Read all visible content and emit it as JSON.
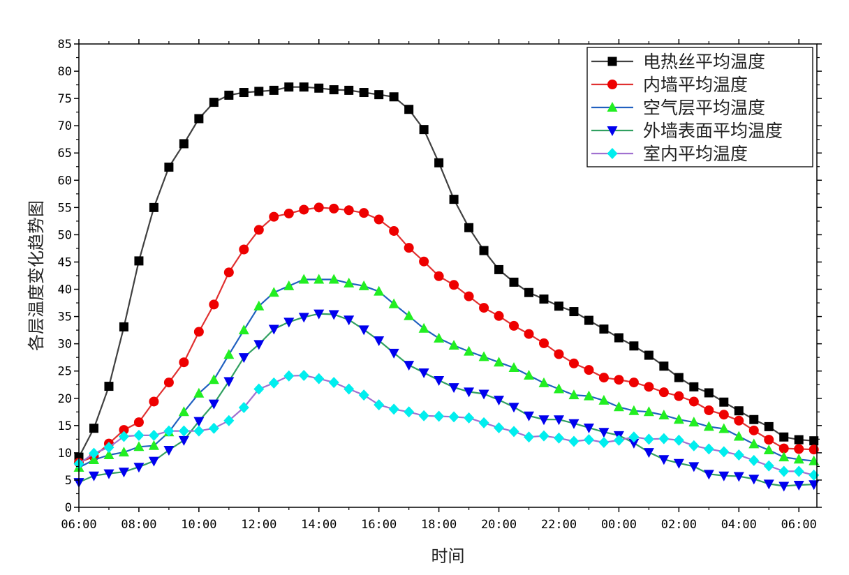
{
  "chart_data": {
    "type": "line",
    "xlabel": "时间",
    "ylabel": "各层温度变化趋势图",
    "xlim": [
      0,
      24.6
    ],
    "ylim": [
      0,
      85
    ],
    "ytick_values": [
      0,
      5,
      10,
      15,
      20,
      25,
      30,
      35,
      40,
      45,
      50,
      55,
      60,
      65,
      70,
      75,
      80,
      85
    ],
    "xtick_values": [
      0,
      2,
      4,
      6,
      8,
      10,
      12,
      14,
      16,
      18,
      20,
      22,
      24
    ],
    "xtick_labels": [
      "06:00",
      "08:00",
      "10:00",
      "12:00",
      "14:00",
      "16:00",
      "18:00",
      "20:00",
      "22:00",
      "00:00",
      "02:00",
      "04:00",
      "06:00"
    ],
    "x": [
      0,
      0.5,
      1,
      1.5,
      2,
      2.5,
      3,
      3.5,
      4,
      4.5,
      5,
      5.5,
      6,
      6.5,
      7,
      7.5,
      8,
      8.5,
      9,
      9.5,
      10,
      10.5,
      11,
      11.5,
      12,
      12.5,
      13,
      13.5,
      14,
      14.5,
      15,
      15.5,
      16,
      16.5,
      17,
      17.5,
      18,
      18.5,
      19,
      19.5,
      20,
      20.5,
      21,
      21.5,
      22,
      22.5,
      23,
      23.5,
      24,
      24.5
    ],
    "legend_position": "top-right",
    "series": [
      {
        "name": "电热丝平均温度",
        "color": "#404040",
        "marker": "square",
        "marker_color": "#000000",
        "values": [
          9.2,
          14.5,
          22.2,
          33.1,
          45.2,
          55.0,
          62.4,
          66.7,
          71.3,
          74.3,
          75.6,
          76.1,
          76.3,
          76.5,
          77.1,
          77.1,
          76.9,
          76.6,
          76.5,
          76.1,
          75.7,
          75.3,
          73.0,
          69.3,
          63.2,
          56.5,
          51.3,
          47.1,
          43.6,
          41.3,
          39.4,
          38.2,
          36.9,
          35.9,
          34.3,
          32.7,
          31.1,
          29.6,
          27.9,
          25.9,
          23.8,
          22.1,
          21.0,
          19.3,
          17.7,
          16.1,
          14.8,
          12.9,
          12.4,
          12.2
        ]
      },
      {
        "name": "内墙平均温度",
        "color": "#e03030",
        "marker": "circle",
        "marker_color": "#ee0000",
        "values": [
          8.2,
          9.3,
          11.7,
          14.2,
          15.6,
          19.4,
          22.9,
          26.6,
          32.2,
          37.2,
          43.1,
          47.3,
          50.9,
          53.3,
          53.9,
          54.6,
          55.0,
          54.8,
          54.5,
          54.0,
          52.8,
          50.7,
          47.6,
          45.1,
          42.4,
          40.8,
          38.7,
          36.6,
          35.1,
          33.3,
          31.8,
          30.1,
          28.1,
          26.4,
          25.2,
          23.8,
          23.4,
          22.9,
          22.1,
          21.1,
          20.4,
          19.4,
          17.8,
          17.0,
          15.9,
          14.1,
          12.4,
          10.8,
          10.7,
          10.6
        ]
      },
      {
        "name": "空气层平均温度",
        "color": "#2060c0",
        "marker": "triangle-up",
        "marker_color": "#22ee22",
        "values": [
          7.3,
          8.7,
          9.6,
          10.1,
          11.1,
          11.3,
          13.8,
          17.5,
          20.9,
          23.4,
          28.0,
          32.5,
          36.9,
          39.4,
          40.6,
          41.8,
          41.8,
          41.8,
          41.1,
          40.6,
          39.6,
          37.3,
          35.1,
          32.8,
          31.0,
          29.7,
          28.6,
          27.6,
          26.6,
          25.6,
          24.2,
          22.8,
          21.7,
          20.6,
          20.4,
          19.6,
          18.4,
          17.7,
          17.5,
          16.9,
          16.1,
          15.6,
          14.8,
          14.4,
          13.0,
          11.6,
          10.5,
          9.2,
          8.8,
          8.5
        ]
      },
      {
        "name": "外墙表面平均温度",
        "color": "#30a060",
        "marker": "triangle-down",
        "marker_color": "#0000ee",
        "values": [
          4.6,
          5.8,
          6.2,
          6.5,
          7.4,
          8.5,
          10.5,
          12.3,
          15.8,
          19.0,
          23.1,
          27.5,
          29.9,
          32.7,
          34.0,
          34.9,
          35.5,
          35.4,
          34.4,
          32.6,
          30.6,
          28.3,
          26.1,
          24.7,
          23.3,
          22.0,
          21.2,
          20.8,
          19.7,
          18.4,
          16.8,
          16.1,
          16.1,
          15.4,
          14.6,
          13.8,
          13.2,
          11.8,
          10.1,
          8.8,
          8.1,
          7.5,
          6.1,
          5.8,
          5.7,
          5.2,
          4.3,
          3.9,
          4.1,
          4.2
        ]
      },
      {
        "name": "室内平均温度",
        "color": "#a070d0",
        "marker": "diamond",
        "marker_color": "#00eeee",
        "values": [
          8.0,
          9.9,
          11.0,
          13.0,
          13.2,
          13.2,
          14.0,
          14.0,
          14.0,
          14.5,
          15.9,
          18.3,
          21.7,
          22.8,
          24.1,
          24.2,
          23.6,
          22.9,
          21.7,
          20.6,
          18.8,
          18.0,
          17.5,
          16.8,
          16.7,
          16.6,
          16.4,
          15.5,
          14.6,
          13.9,
          12.9,
          13.1,
          12.7,
          12.1,
          12.4,
          11.9,
          12.3,
          12.9,
          12.5,
          12.6,
          12.3,
          11.3,
          10.7,
          10.2,
          9.6,
          8.6,
          7.6,
          6.6,
          6.6,
          5.9
        ]
      }
    ]
  }
}
